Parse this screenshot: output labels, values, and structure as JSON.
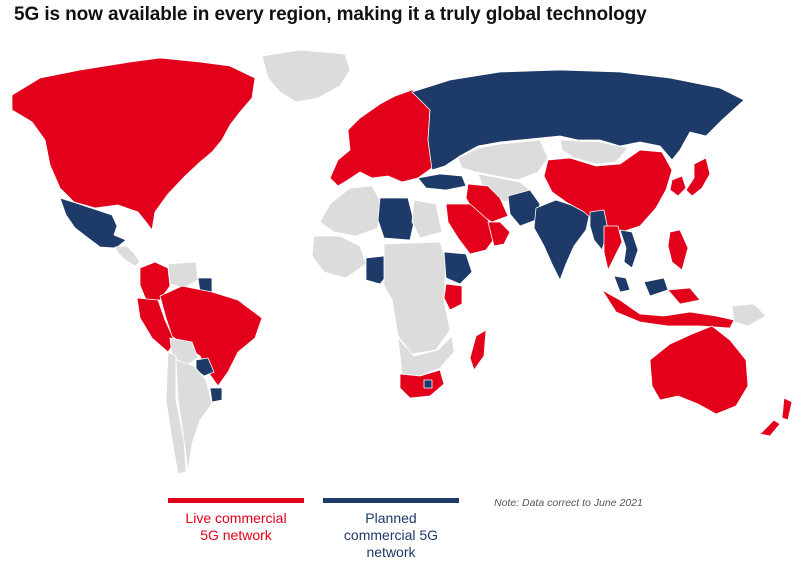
{
  "title": "5G is now available in every region, making it a truly global technology",
  "colors": {
    "live": "#e2001a",
    "planned": "#1d3a69",
    "none": "#dcdcdc",
    "border": "#ffffff"
  },
  "legend": {
    "live": {
      "label_line1": "Live commercial",
      "label_line2": "5G network"
    },
    "planned": {
      "label_line1": "Planned",
      "label_line2": "commercial 5G",
      "label_line3": "network"
    }
  },
  "note": "Note: Data correct to June 2021",
  "regions": [
    {
      "name": "North America (USA, Canada)",
      "status": "live"
    },
    {
      "name": "Mexico",
      "status": "planned"
    },
    {
      "name": "Central America",
      "status": "none"
    },
    {
      "name": "Greenland",
      "status": "none"
    },
    {
      "name": "Colombia",
      "status": "live"
    },
    {
      "name": "Venezuela",
      "status": "none"
    },
    {
      "name": "Guyana",
      "status": "planned"
    },
    {
      "name": "Peru",
      "status": "live"
    },
    {
      "name": "Brazil",
      "status": "live"
    },
    {
      "name": "Bolivia",
      "status": "none"
    },
    {
      "name": "Chile",
      "status": "none"
    },
    {
      "name": "Argentina",
      "status": "none"
    },
    {
      "name": "Paraguay",
      "status": "planned"
    },
    {
      "name": "Uruguay",
      "status": "planned"
    },
    {
      "name": "Europe",
      "status": "live"
    },
    {
      "name": "Russia",
      "status": "planned"
    },
    {
      "name": "Kazakhstan",
      "status": "none"
    },
    {
      "name": "Central Asia",
      "status": "none"
    },
    {
      "name": "Turkey",
      "status": "planned"
    },
    {
      "name": "Iran",
      "status": "live"
    },
    {
      "name": "Saudi Arabia",
      "status": "live"
    },
    {
      "name": "Gulf States",
      "status": "live"
    },
    {
      "name": "Pakistan",
      "status": "planned"
    },
    {
      "name": "India",
      "status": "planned"
    },
    {
      "name": "China",
      "status": "live"
    },
    {
      "name": "Mongolia",
      "status": "none"
    },
    {
      "name": "Japan",
      "status": "live"
    },
    {
      "name": "South Korea",
      "status": "live"
    },
    {
      "name": "Myanmar",
      "status": "planned"
    },
    {
      "name": "Thailand",
      "status": "live"
    },
    {
      "name": "Vietnam",
      "status": "planned"
    },
    {
      "name": "Philippines",
      "status": "live"
    },
    {
      "name": "Malaysia",
      "status": "planned"
    },
    {
      "name": "Indonesia",
      "status": "live"
    },
    {
      "name": "Papua New Guinea",
      "status": "none"
    },
    {
      "name": "Australia",
      "status": "live"
    },
    {
      "name": "New Zealand",
      "status": "live"
    },
    {
      "name": "North Africa",
      "status": "none"
    },
    {
      "name": "Libya",
      "status": "planned"
    },
    {
      "name": "Egypt",
      "status": "none"
    },
    {
      "name": "West Africa",
      "status": "none"
    },
    {
      "name": "Nigeria",
      "status": "planned"
    },
    {
      "name": "Central Africa",
      "status": "none"
    },
    {
      "name": "Ethiopia",
      "status": "planned"
    },
    {
      "name": "Kenya",
      "status": "live"
    },
    {
      "name": "Southern Africa",
      "status": "none"
    },
    {
      "name": "South Africa",
      "status": "live"
    },
    {
      "name": "Lesotho",
      "status": "planned"
    },
    {
      "name": "Madagascar",
      "status": "live"
    }
  ]
}
